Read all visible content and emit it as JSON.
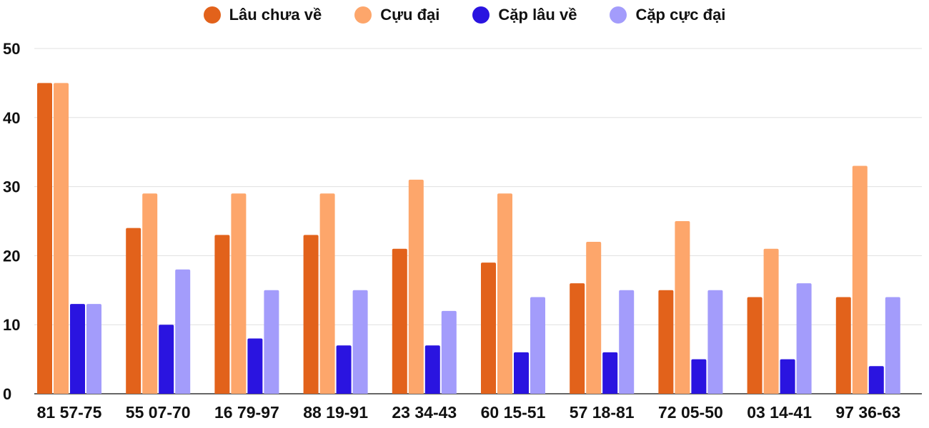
{
  "chart_data": {
    "type": "bar",
    "categories": [
      "81 57-75",
      "55 07-70",
      "16 79-97",
      "88 19-91",
      "23 34-43",
      "60 15-51",
      "57 18-81",
      "72 05-50",
      "03 14-41",
      "97 36-63"
    ],
    "series": [
      {
        "name": "Lâu chưa về",
        "color": "#e2621b",
        "values": [
          45,
          24,
          23,
          23,
          21,
          19,
          16,
          15,
          14,
          14
        ]
      },
      {
        "name": "Cựu đại",
        "color": "#fda66b",
        "values": [
          45,
          29,
          29,
          29,
          31,
          29,
          22,
          25,
          21,
          33
        ]
      },
      {
        "name": "Cặp lâu về",
        "color": "#2a14e0",
        "values": [
          13,
          10,
          8,
          7,
          7,
          6,
          6,
          5,
          5,
          4
        ]
      },
      {
        "name": "Cặp cực đại",
        "color": "#a39cfb",
        "values": [
          13,
          18,
          15,
          15,
          12,
          14,
          15,
          15,
          16,
          14
        ]
      }
    ],
    "yticks": [
      0,
      10,
      20,
      30,
      40,
      50
    ],
    "ylim": [
      0,
      50
    ],
    "grid": true,
    "legend_position": "top-center"
  }
}
